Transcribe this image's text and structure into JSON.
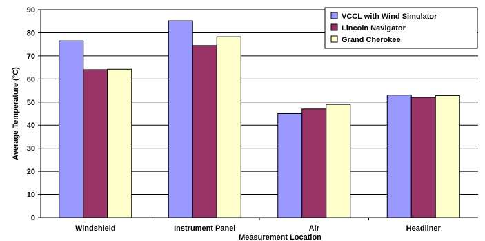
{
  "chart_data": {
    "type": "bar",
    "title": "",
    "xlabel": "Measurement Location",
    "ylabel": "Average Temperature (°C)",
    "categories": [
      "Windshield",
      "Instrument Panel",
      "Air",
      "Headliner"
    ],
    "ylim": [
      0,
      90
    ],
    "ytick_step": 10,
    "grid": true,
    "legend_position": "top-right",
    "series": [
      {
        "name": "VCCL with Wind Simulator",
        "color": "#9999ff",
        "values": [
          76.5,
          85.2,
          45.0,
          53.0
        ]
      },
      {
        "name": "Lincoln Navigator",
        "color": "#993366",
        "values": [
          64.0,
          74.5,
          47.0,
          52.0
        ]
      },
      {
        "name": "Grand Cherokee",
        "color": "#ffffcc",
        "values": [
          64.2,
          78.3,
          49.0,
          52.8
        ]
      }
    ]
  }
}
